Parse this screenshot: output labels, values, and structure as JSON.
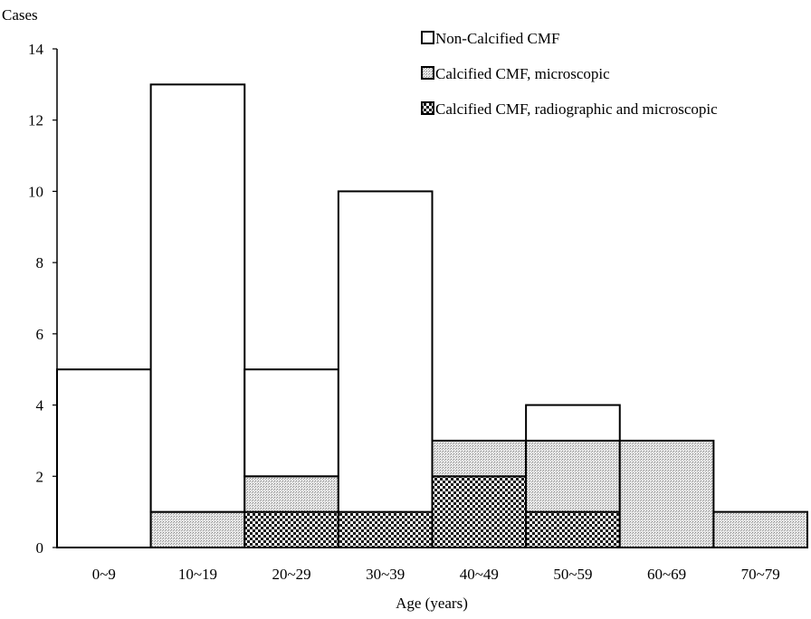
{
  "chart_data": {
    "type": "bar",
    "stacked": true,
    "ylabel": "Cases",
    "xlabel": "Age (years)",
    "categories": [
      "0~9",
      "10~19",
      "20~29",
      "30~39",
      "40~49",
      "50~59",
      "60~69",
      "70~79"
    ],
    "yticks": [
      0,
      2,
      4,
      6,
      8,
      10,
      12,
      14
    ],
    "ylim": [
      0,
      14
    ],
    "series": [
      {
        "name": "Calcified CMF, radiographic and microscopic",
        "pattern": "checker",
        "values": [
          0,
          0,
          1,
          1,
          2,
          1,
          0,
          0
        ]
      },
      {
        "name": "Calcified CMF, microscopic",
        "pattern": "dotted-gray",
        "values": [
          0,
          1,
          1,
          0,
          1,
          2,
          3,
          1
        ]
      },
      {
        "name": "Non-Calcified CMF",
        "pattern": "white",
        "values": [
          5,
          12,
          3,
          9,
          0,
          1,
          0,
          0
        ]
      }
    ],
    "legend_order": [
      "Non-Calcified CMF",
      "Calcified CMF, microscopic",
      "Calcified CMF, radiographic and microscopic"
    ],
    "legend_position": "top-right",
    "grid": false
  }
}
